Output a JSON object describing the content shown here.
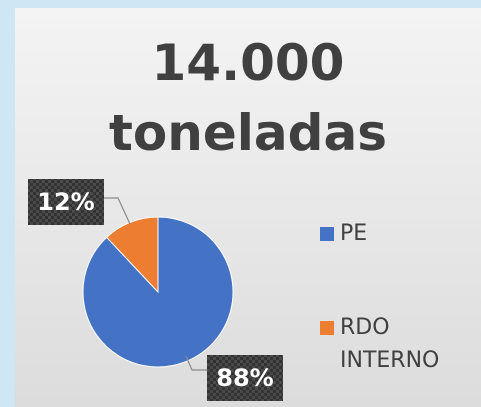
{
  "chart_data": {
    "type": "pie",
    "title": "14.000 toneladas",
    "categories": [
      "PE",
      "RDO INTERNO"
    ],
    "values": [
      88,
      12
    ],
    "value_labels": [
      "88%",
      "12%"
    ],
    "colors": [
      "#4472c4",
      "#ed7d31"
    ],
    "legend": "right"
  }
}
